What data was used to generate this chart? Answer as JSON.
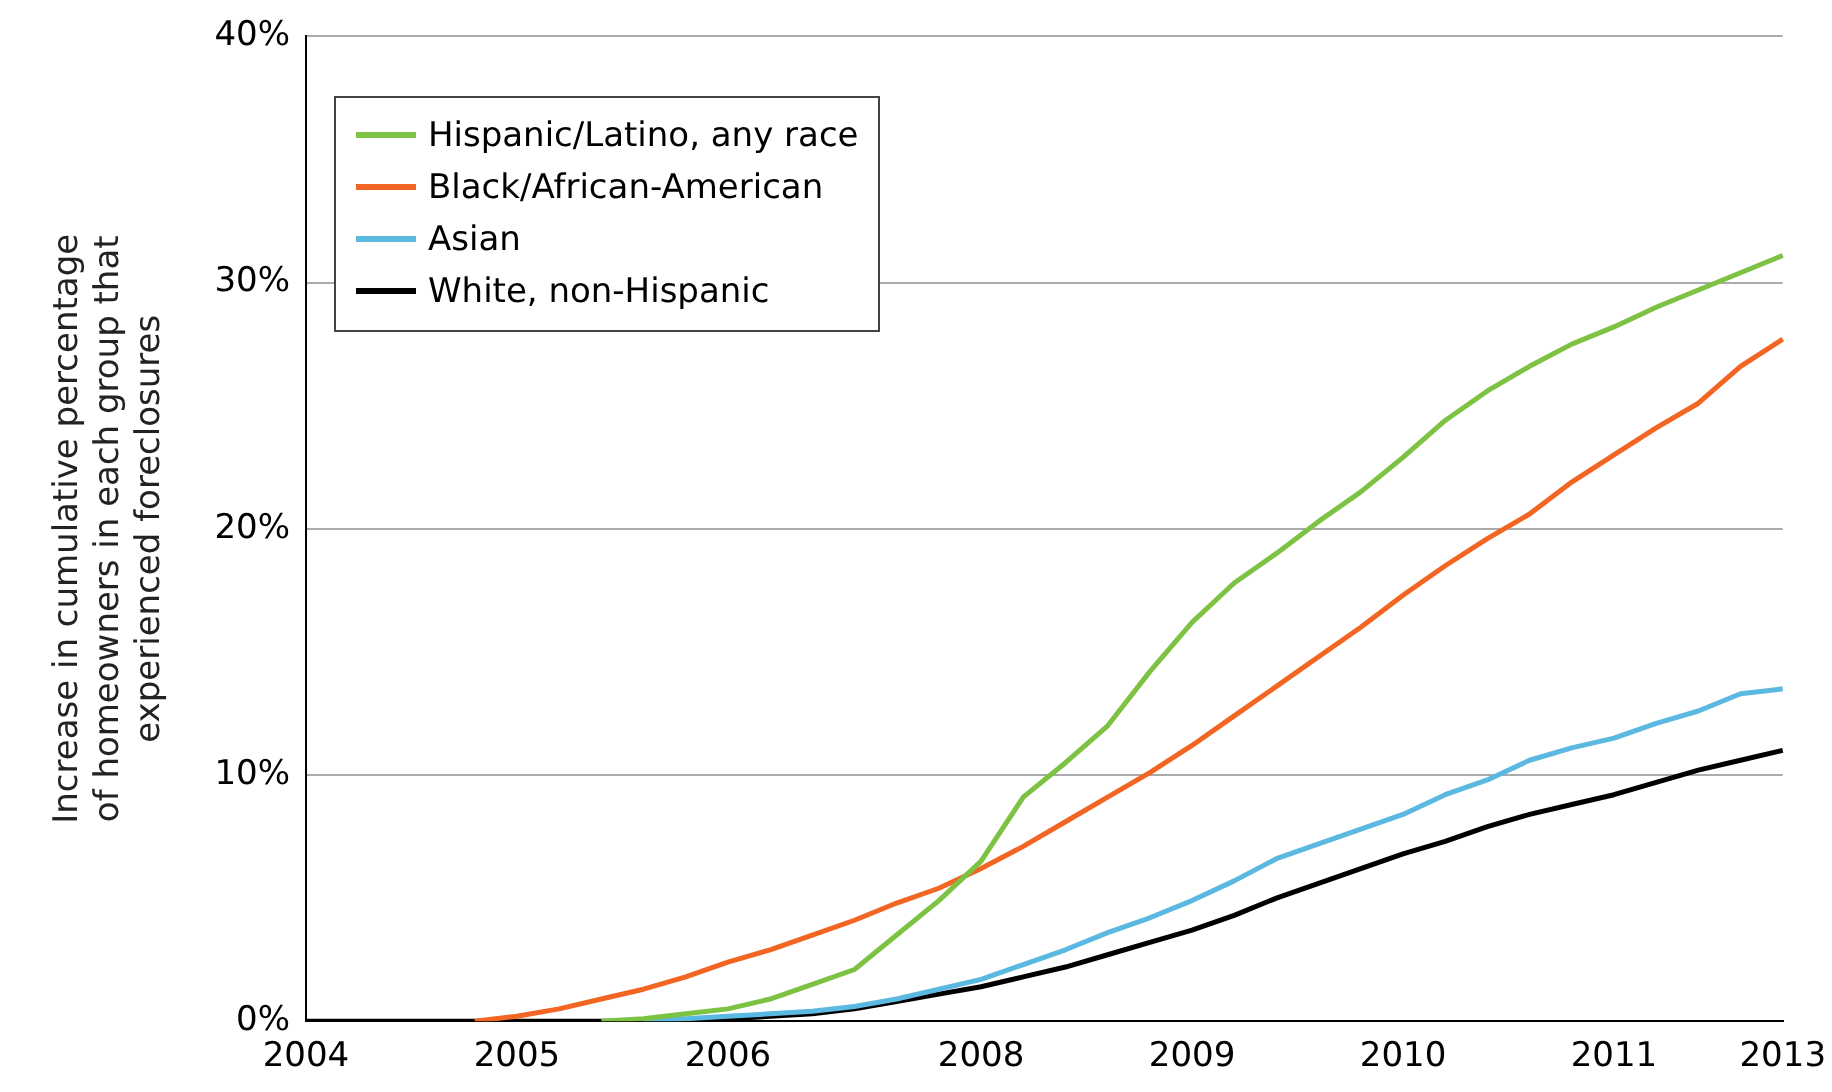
{
  "chart_data": {
    "type": "line",
    "ylabel": "Increase in cumulative percentage of homeowners in each group that experienced foreclosures",
    "categories": [
      "2004",
      null,
      null,
      null,
      null,
      "2005",
      null,
      null,
      null,
      null,
      "2006",
      null,
      null,
      null,
      null,
      null,
      "2008",
      null,
      null,
      null,
      null,
      "2009",
      null,
      null,
      null,
      null,
      "2010",
      null,
      null,
      null,
      null,
      "2011",
      null,
      null,
      null,
      "2013"
    ],
    "series": [
      {
        "name": "Hispanic/Latino, any race",
        "color": "#7dc242",
        "values": [
          null,
          null,
          null,
          null,
          null,
          null,
          null,
          0,
          0.1,
          0.3,
          0.5,
          0.9,
          1.5,
          2.1,
          3.5,
          4.9,
          6.5,
          9.1,
          10.5,
          12,
          14.2,
          16.2,
          17.8,
          19,
          20.3,
          21.5,
          22.9,
          24.4,
          25.6,
          26.6,
          27.5,
          28.2,
          29,
          29.7,
          30.4,
          31.1
        ]
      },
      {
        "name": "Black/African-American",
        "color": "#f26522",
        "values": [
          null,
          null,
          null,
          null,
          0,
          0.2,
          0.5,
          0.9,
          1.3,
          1.8,
          2.4,
          2.9,
          3.5,
          4.1,
          4.8,
          5.4,
          6.2,
          7.1,
          8.1,
          9.1,
          10.1,
          11.2,
          12.4,
          13.6,
          14.8,
          16,
          17.3,
          18.5,
          19.6,
          20.6,
          21.9,
          23,
          24.1,
          25.1,
          26.6,
          27.7
        ]
      },
      {
        "name": "Asian",
        "color": "#5bb8e0",
        "values": [
          null,
          null,
          null,
          null,
          null,
          null,
          null,
          null,
          0,
          0.1,
          0.2,
          0.3,
          0.4,
          0.6,
          0.9,
          1.3,
          1.7,
          2.3,
          2.9,
          3.6,
          4.2,
          4.9,
          5.7,
          6.6,
          7.2,
          7.8,
          8.4,
          9.2,
          9.8,
          10.6,
          11.1,
          11.5,
          12.1,
          12.6,
          13.3,
          13.5
        ]
      },
      {
        "name": "White, non-Hispanic",
        "color": "#000000",
        "values": [
          0,
          0,
          0,
          0,
          0,
          0,
          0,
          0,
          0,
          0,
          0.1,
          0.2,
          0.3,
          0.5,
          0.8,
          1.1,
          1.4,
          1.8,
          2.2,
          2.7,
          3.2,
          3.7,
          4.3,
          5,
          5.6,
          6.2,
          6.8,
          7.3,
          7.9,
          8.4,
          8.8,
          9.2,
          9.7,
          10.2,
          10.6,
          11
        ]
      }
    ],
    "ylim": [
      0,
      40
    ],
    "yticks": [
      {
        "value": 0,
        "label": "0%"
      },
      {
        "value": 10,
        "label": "10%"
      },
      {
        "value": 20,
        "label": "20%"
      },
      {
        "value": 30,
        "label": "30%"
      },
      {
        "value": 40,
        "label": "40%"
      }
    ],
    "grid": "y",
    "legend": "top left",
    "marker": "none",
    "line_style": "solid"
  }
}
